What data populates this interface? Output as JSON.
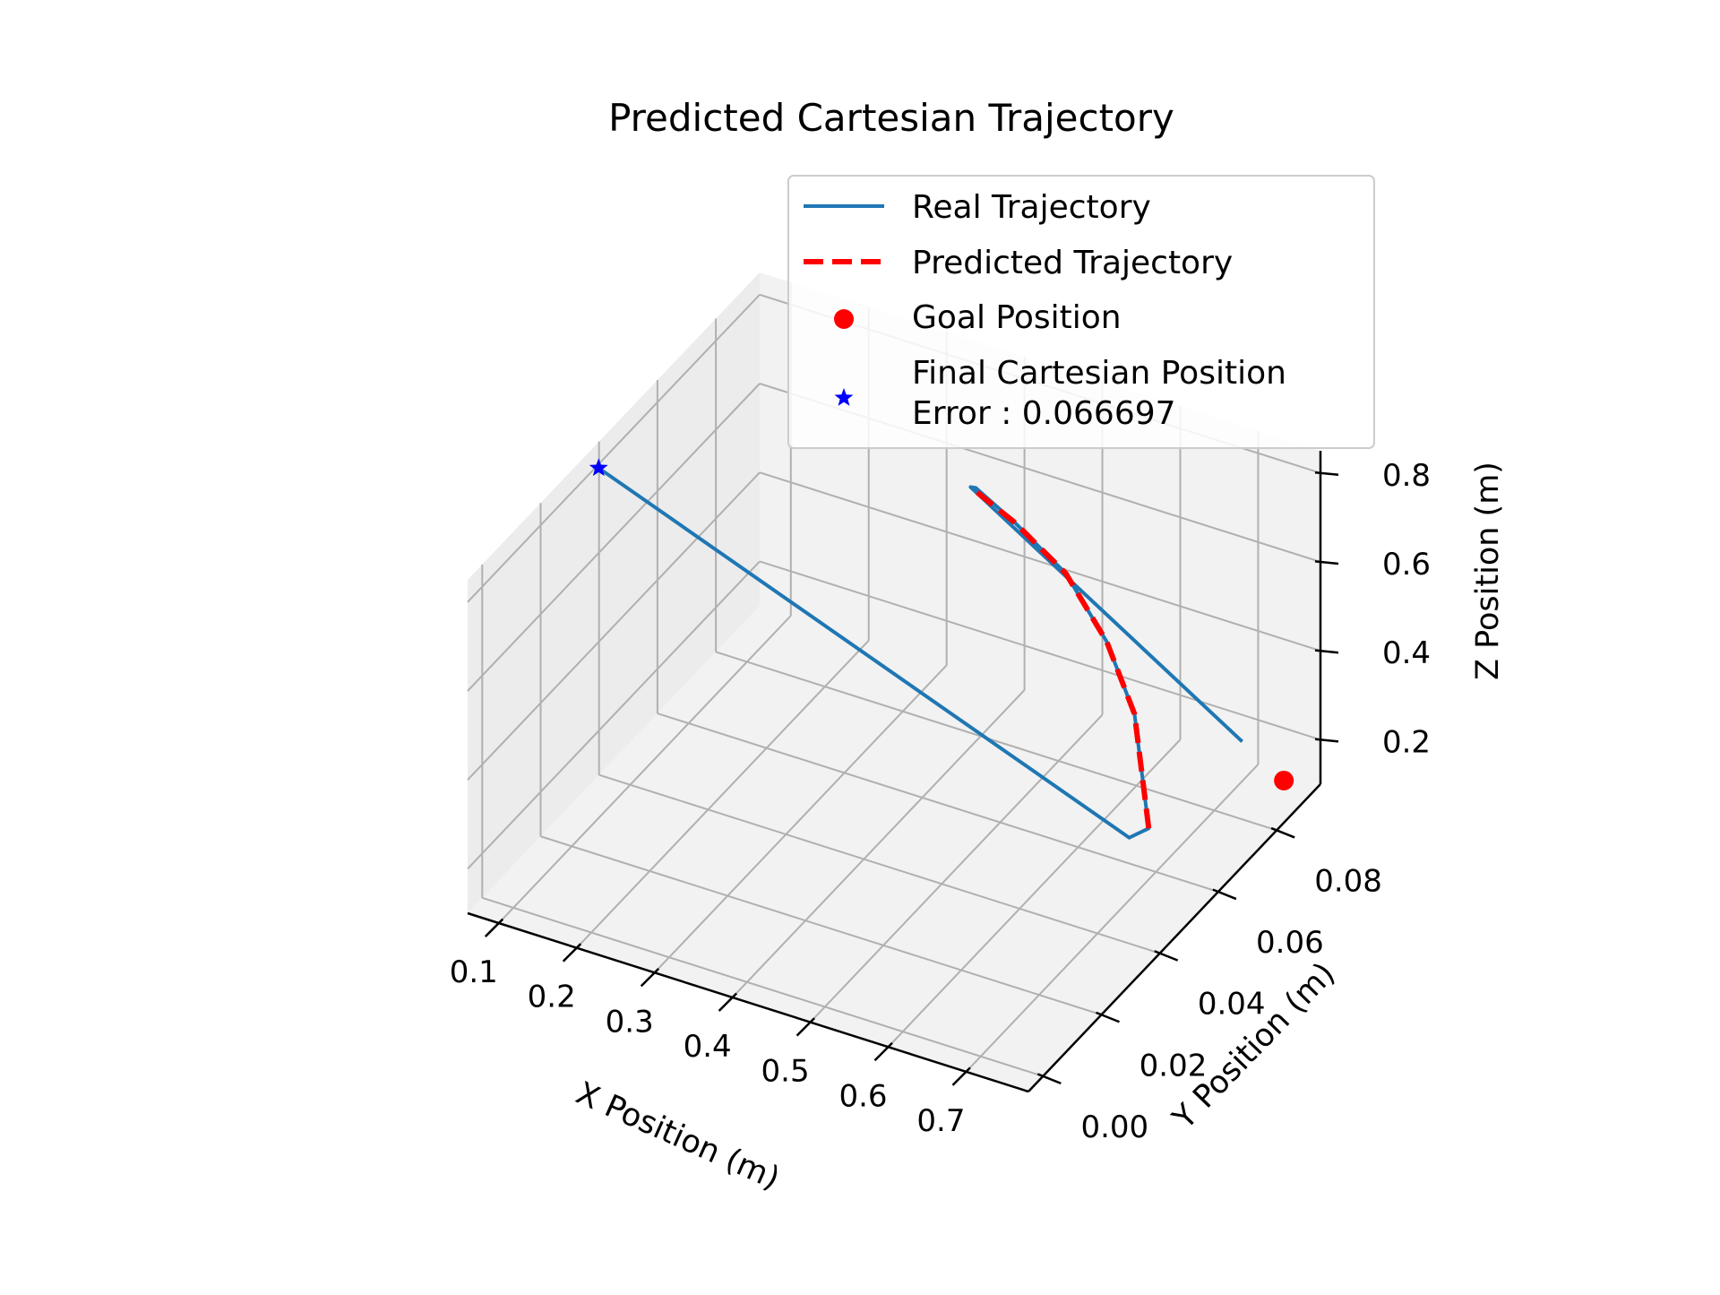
{
  "chart_data": {
    "type": "line",
    "projection": "3d",
    "title": "Predicted Cartesian Trajectory",
    "xlabel": "X Position (m)",
    "ylabel": "Y Position (m)",
    "zlabel": "Z Position (m)",
    "xlim": [
      0.06,
      0.78
    ],
    "ylim": [
      -0.005,
      0.095
    ],
    "zlim": [
      0.1,
      0.85
    ],
    "xticks": [
      "0.1",
      "0.2",
      "0.3",
      "0.4",
      "0.5",
      "0.6",
      "0.7"
    ],
    "yticks": [
      "0.00",
      "0.02",
      "0.04",
      "0.06",
      "0.08"
    ],
    "zticks": [
      "0.2",
      "0.4",
      "0.6",
      "0.8"
    ],
    "grid": true,
    "legend_position": "upper-right",
    "series": [
      {
        "name": "Real Trajectory",
        "style": "solid",
        "color": "#1f77b4",
        "points": [
          [
            0.067,
            0.038,
            0.808
          ],
          [
            0.692,
            0.053,
            0.221
          ],
          [
            0.702,
            0.057,
            0.22
          ],
          [
            0.635,
            0.07,
            0.35
          ],
          [
            0.573,
            0.077,
            0.43
          ],
          [
            0.498,
            0.083,
            0.5
          ],
          [
            0.425,
            0.085,
            0.56
          ],
          [
            0.375,
            0.085,
            0.61
          ],
          [
            0.372,
            0.084,
            0.617
          ],
          [
            0.762,
            0.073,
            0.338
          ]
        ]
      },
      {
        "name": "Predicted Trajectory",
        "style": "dashed",
        "color": "#ff0000",
        "points": [
          [
            0.702,
            0.057,
            0.22
          ],
          [
            0.635,
            0.07,
            0.35
          ],
          [
            0.573,
            0.077,
            0.43
          ],
          [
            0.498,
            0.083,
            0.5
          ],
          [
            0.425,
            0.085,
            0.56
          ],
          [
            0.372,
            0.084,
            0.617
          ]
        ]
      }
    ],
    "markers": [
      {
        "name": "Goal Position",
        "shape": "circle",
        "color": "#ff0000",
        "point": [
          0.778,
          0.083,
          0.19
        ]
      },
      {
        "name": "Final Cartesian Position\nError : 0.066697",
        "shape": "star",
        "color": "#0000ff",
        "point": [
          0.067,
          0.038,
          0.808
        ]
      }
    ]
  }
}
